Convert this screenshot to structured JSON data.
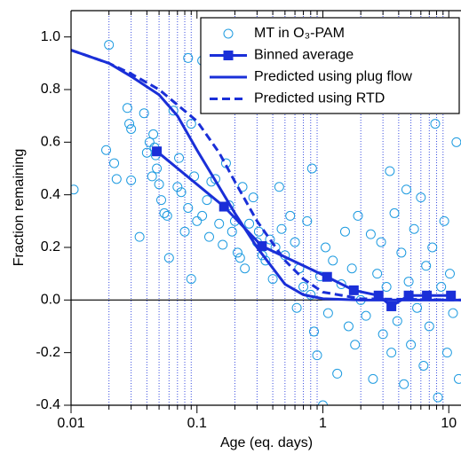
{
  "chart_data": {
    "type": "scatter",
    "xlabel": "Age (eq. days)",
    "ylabel": "Fraction remaining",
    "xscale": "log",
    "xlim": [
      0.01,
      12.5
    ],
    "ylim": [
      -0.4,
      1.1
    ],
    "xticks": [
      0.01,
      0.1,
      1,
      10
    ],
    "minor_xticks": [
      0.02,
      0.03,
      0.04,
      0.05,
      0.06,
      0.07,
      0.08,
      0.09,
      0.2,
      0.3,
      0.4,
      0.5,
      0.6,
      0.7,
      0.8,
      0.9,
      2,
      3,
      4,
      5,
      6,
      7,
      8,
      9
    ],
    "yticks": [
      -0.4,
      -0.2,
      {
        "value": 0,
        "label": "0.0"
      },
      0.2,
      0.4,
      0.6,
      0.8,
      {
        "value": 1,
        "label": "1.0"
      }
    ],
    "grid": true,
    "legend": "top-right",
    "series": [
      {
        "name": "MT in O₃-PAM",
        "style": "markers",
        "color": "#1e9be0",
        "x": [
          0.0105,
          0.02,
          0.019,
          0.022,
          0.023,
          0.028,
          0.029,
          0.03,
          0.03,
          0.035,
          0.038,
          0.04,
          0.042,
          0.045,
          0.046,
          0.048,
          0.05,
          0.052,
          0.055,
          0.058,
          0.047,
          0.044,
          0.06,
          0.065,
          0.07,
          0.072,
          0.075,
          0.08,
          0.085,
          0.09,
          0.095,
          0.1,
          0.09,
          0.11,
          0.12,
          0.125,
          0.13,
          0.14,
          0.15,
          0.16,
          0.17,
          0.18,
          0.19,
          0.2,
          0.21,
          0.22,
          0.23,
          0.24,
          0.26,
          0.28,
          0.3,
          0.31,
          0.33,
          0.35,
          0.38,
          0.4,
          0.42,
          0.45,
          0.47,
          0.5,
          0.55,
          0.6,
          0.62,
          0.65,
          0.7,
          0.75,
          0.8,
          0.82,
          0.85,
          0.9,
          0.95,
          1.0,
          1.05,
          1.1,
          1.2,
          1.3,
          1.4,
          1.5,
          1.6,
          1.7,
          1.8,
          1.9,
          2.0,
          2.2,
          2.4,
          2.5,
          2.7,
          2.9,
          3.0,
          3.2,
          3.4,
          3.5,
          3.7,
          3.9,
          4.2,
          4.4,
          4.6,
          4.8,
          5.0,
          5.3,
          5.6,
          6.0,
          6.3,
          6.6,
          7.0,
          7.4,
          7.8,
          8.2,
          8.7,
          9.2,
          9.7,
          10.2,
          10.8,
          11.5,
          12,
          0.085,
          0.11
        ],
        "values": [
          0.42,
          0.97,
          0.57,
          0.52,
          0.46,
          0.73,
          0.67,
          0.65,
          0.455,
          0.24,
          0.71,
          0.56,
          0.6,
          0.63,
          0.58,
          0.5,
          0.44,
          0.38,
          0.33,
          0.32,
          0.55,
          0.47,
          0.16,
          0.72,
          0.43,
          0.54,
          0.41,
          0.26,
          0.35,
          0.08,
          0.47,
          0.3,
          0.67,
          0.32,
          0.38,
          0.24,
          0.45,
          0.46,
          0.29,
          0.21,
          0.52,
          0.36,
          0.26,
          0.3,
          0.18,
          0.16,
          0.43,
          0.12,
          0.29,
          0.39,
          0.22,
          0.26,
          0.17,
          0.15,
          0.23,
          0.08,
          0.2,
          0.43,
          0.27,
          0.17,
          0.32,
          0.22,
          -0.03,
          0.12,
          0.05,
          0.3,
          0.02,
          0.5,
          -0.12,
          -0.21,
          0.09,
          -0.4,
          0.2,
          -0.05,
          0.15,
          -0.28,
          0.06,
          0.26,
          -0.1,
          0.12,
          -0.17,
          0.32,
          0.0,
          -0.06,
          0.25,
          -0.3,
          0.1,
          0.22,
          -0.13,
          0.05,
          0.49,
          -0.2,
          0.33,
          -0.08,
          0.18,
          -0.32,
          0.42,
          0.07,
          -0.17,
          0.27,
          -0.03,
          0.39,
          -0.25,
          0.13,
          -0.1,
          0.2,
          0.67,
          -0.37,
          0.05,
          0.3,
          -0.2,
          0.1,
          -0.05,
          0.6,
          -0.3,
          0.92,
          0.91
        ]
      },
      {
        "name": "Binned average",
        "style": "markers-line",
        "color": "#1a2fd8",
        "x": [
          0.048,
          0.164,
          0.328,
          1.08,
          1.76,
          2.77,
          3.5,
          4.8,
          6.7,
          10.4
        ],
        "values": [
          0.565,
          0.355,
          0.205,
          0.088,
          0.037,
          0.017,
          -0.024,
          0.017,
          0.017,
          0.017
        ]
      },
      {
        "name": "Predicted using plug flow",
        "style": "line",
        "color": "#1a2fd8",
        "x": [
          0.01,
          0.02,
          0.03,
          0.05,
          0.07,
          0.1,
          0.15,
          0.2,
          0.3,
          0.5,
          0.7,
          1,
          2,
          12.5
        ],
        "values": [
          0.95,
          0.9,
          0.85,
          0.78,
          0.7,
          0.57,
          0.43,
          0.33,
          0.2,
          0.06,
          0.02,
          0.005,
          0,
          0
        ]
      },
      {
        "name": "Predicted using RTD",
        "style": "dashed",
        "color": "#1a2fd8",
        "x": [
          0.01,
          0.02,
          0.03,
          0.05,
          0.1,
          0.15,
          0.2,
          0.3,
          0.5,
          0.7,
          1,
          2,
          12.5
        ],
        "values": [
          0.95,
          0.9,
          0.86,
          0.8,
          0.68,
          0.56,
          0.45,
          0.3,
          0.15,
          0.08,
          0.03,
          0.005,
          0
        ]
      }
    ]
  }
}
